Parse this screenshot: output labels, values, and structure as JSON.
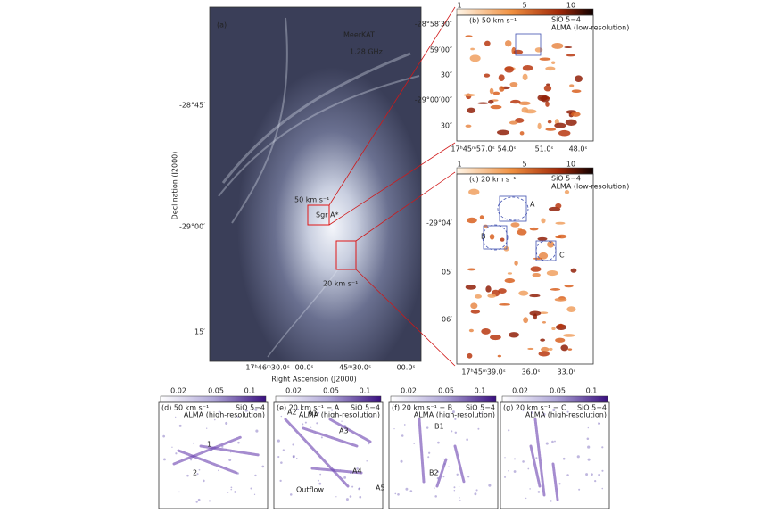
{
  "panel_a": {
    "label": "(a)",
    "telescope": "MeerKAT",
    "frequency": "1.28 GHz",
    "annotations": [
      "50 km s⁻¹",
      "Sgr A*",
      "20 km s⁻¹"
    ],
    "y_axis_label": "Declination (J2000)",
    "x_axis_label": "Right Ascension (J2000)",
    "y_ticks": [
      "-28°45′",
      "-29°00′",
      "15′"
    ],
    "x_ticks": [
      "17ʰ46ᵐ30.0ˢ",
      "00.0ˢ",
      "45ᵐ30.0ˢ",
      "00.0ˢ"
    ]
  },
  "panel_b": {
    "colorbar_ticks": [
      "1",
      "5",
      "10"
    ],
    "label": "(b) 50 km s⁻¹",
    "line": "SiO 5−4",
    "instrument": "ALMA (low-resolution)",
    "y_ticks": [
      "-28°58′30″",
      "59′00″",
      "30″",
      "-29°00′00″",
      "30″"
    ],
    "x_ticks": [
      "17ʰ45ᵐ57.0ˢ",
      "54.0ˢ",
      "51.0ˢ",
      "48.0ˢ"
    ]
  },
  "panel_c": {
    "colorbar_ticks": [
      "1",
      "5",
      "10"
    ],
    "label": "(c) 20 km s⁻¹",
    "line": "SiO 5−4",
    "instrument": "ALMA (low-resolution)",
    "regions": [
      "A",
      "B",
      "C"
    ],
    "y_ticks": [
      "-29°04′",
      "05′",
      "06′"
    ],
    "x_ticks": [
      "17ʰ45ᵐ39.0ˢ",
      "36.0ˢ",
      "33.0ˢ"
    ]
  },
  "panels_bottom": [
    {
      "colorbar_ticks": [
        "0.02",
        "0.05",
        "0.1"
      ],
      "label": "(d) 50 km s⁻¹",
      "line": "SiO 5−4",
      "instrument": "ALMA (high-resolution)",
      "annotations": [
        "1",
        "2"
      ]
    },
    {
      "colorbar_ticks": [
        "0.02",
        "0.05",
        "0.1"
      ],
      "label": "(e) 20 km s⁻¹ − A",
      "line": "SiO 5−4",
      "instrument": "ALMA (high-resolution)",
      "annotations": [
        "A2",
        "A1",
        "A3",
        "A4",
        "A5",
        "Outflow"
      ]
    },
    {
      "colorbar_ticks": [
        "0.02",
        "0.05",
        "0.1"
      ],
      "label": "(f) 20 km s⁻¹ − B",
      "line": "SiO 5−4",
      "instrument": "ALMA (high-resolution)",
      "annotations": [
        "B1",
        "B2"
      ]
    },
    {
      "colorbar_ticks": [
        "0.02",
        "0.05",
        "0.1"
      ],
      "label": "(g) 20 km s⁻¹ − C",
      "line": "SiO 5−4",
      "instrument": "ALMA (high-resolution)",
      "annotations": []
    }
  ]
}
